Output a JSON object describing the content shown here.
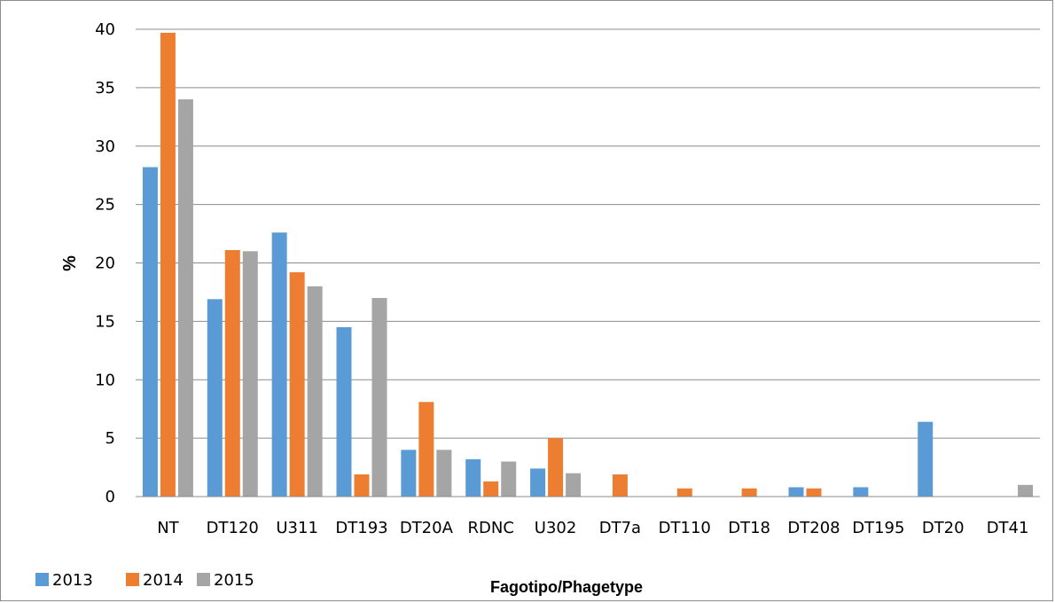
{
  "chart_data": {
    "type": "bar",
    "title": "",
    "xlabel": "Fagotipo/Phagetype",
    "ylabel": "%",
    "ylim": [
      0,
      40
    ],
    "yticks": [
      0,
      5,
      10,
      15,
      20,
      25,
      30,
      35,
      40
    ],
    "grid": true,
    "legend_position": "bottom-left",
    "categories": [
      "NT",
      "DT120",
      "U311",
      "DT193",
      "DT20A",
      "RDNC",
      "U302",
      "DT7a",
      "DT110",
      "DT18",
      "DT208",
      "DT195",
      "DT20",
      "DT41"
    ],
    "series": [
      {
        "name": "2013",
        "color": "#5b9bd5",
        "values": [
          28.2,
          16.9,
          22.6,
          14.5,
          4.0,
          3.2,
          2.4,
          0,
          0,
          0,
          0.8,
          0.8,
          6.4,
          0
        ]
      },
      {
        "name": "2014",
        "color": "#ed7d31",
        "values": [
          39.7,
          21.1,
          19.2,
          1.9,
          8.1,
          1.3,
          5.0,
          1.9,
          0.7,
          0.7,
          0.7,
          0,
          0,
          0
        ]
      },
      {
        "name": "2015",
        "color": "#a5a5a5",
        "values": [
          34.0,
          21.0,
          18.0,
          17.0,
          4.0,
          3.0,
          2.0,
          0,
          0,
          0,
          0,
          0,
          0,
          1.0
        ]
      }
    ]
  }
}
